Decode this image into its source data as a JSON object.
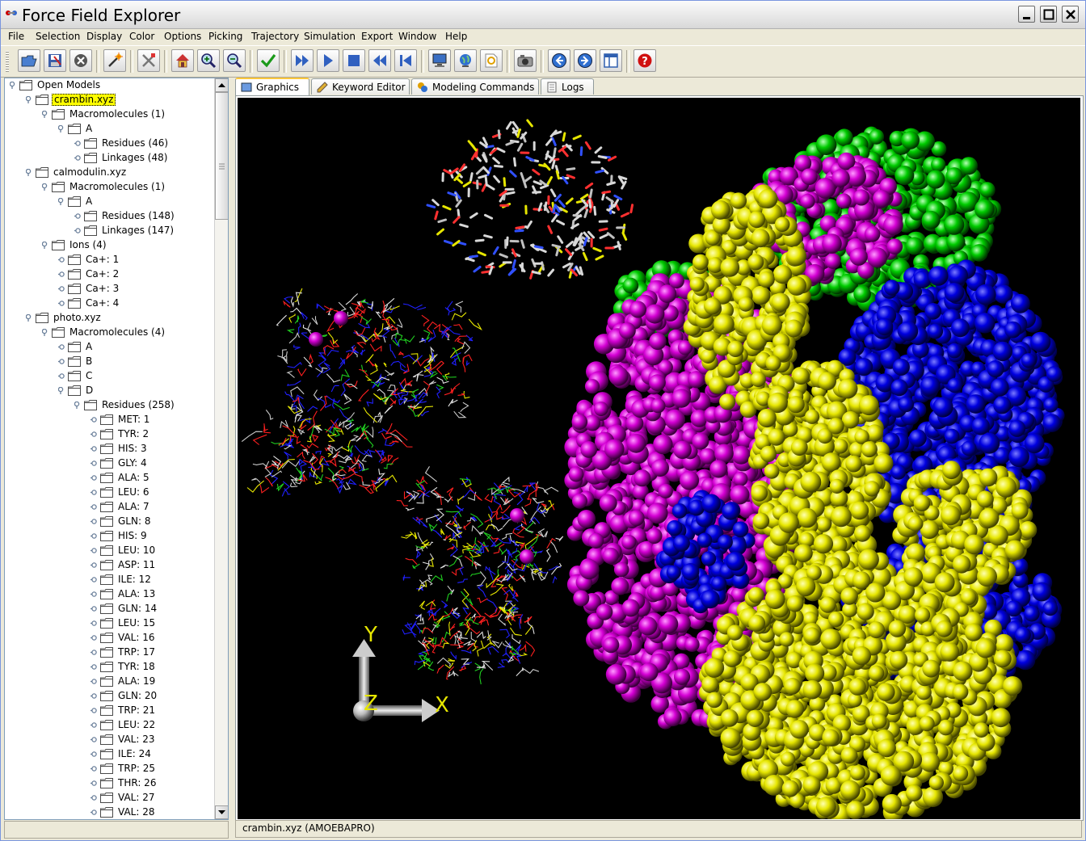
{
  "window": {
    "title": "Force Field Explorer"
  },
  "menu": [
    "File",
    "Selection",
    "Display",
    "Color",
    "Options",
    "Picking",
    "Trajectory",
    "Simulation",
    "Export",
    "Window",
    "Help"
  ],
  "toolbar_icons": [
    "open-icon",
    "save-icon",
    "close-icon",
    "wand-icon",
    "tools-icon",
    "home-icon",
    "zoom-in-icon",
    "zoom-out-icon",
    "check-icon",
    "fast-forward-icon",
    "play-icon",
    "stop-icon",
    "rewind-icon",
    "skip-back-icon",
    "monitor-icon",
    "globe-icon",
    "find-icon",
    "camera-icon",
    "back-icon",
    "forward-icon",
    "window-icon",
    "help-icon"
  ],
  "tree": [
    {
      "label": "Open Models",
      "level": 0,
      "expanded": true
    },
    {
      "label": "crambin.xyz",
      "level": 1,
      "expanded": true,
      "selected": true
    },
    {
      "label": "Macromolecules (1)",
      "level": 2,
      "expanded": true
    },
    {
      "label": "A",
      "level": 3,
      "expanded": true
    },
    {
      "label": "Residues (46)",
      "level": 4,
      "expanded": false
    },
    {
      "label": "Linkages (48)",
      "level": 4,
      "expanded": false
    },
    {
      "label": "calmodulin.xyz",
      "level": 1,
      "expanded": true
    },
    {
      "label": "Macromolecules (1)",
      "level": 2,
      "expanded": true
    },
    {
      "label": "A",
      "level": 3,
      "expanded": true
    },
    {
      "label": "Residues (148)",
      "level": 4,
      "expanded": false
    },
    {
      "label": "Linkages (147)",
      "level": 4,
      "expanded": false
    },
    {
      "label": "Ions (4)",
      "level": 2,
      "expanded": true
    },
    {
      "label": "Ca+: 1",
      "level": 3,
      "expanded": false
    },
    {
      "label": "Ca+: 2",
      "level": 3,
      "expanded": false
    },
    {
      "label": "Ca+: 3",
      "level": 3,
      "expanded": false
    },
    {
      "label": "Ca+: 4",
      "level": 3,
      "expanded": false
    },
    {
      "label": "photo.xyz",
      "level": 1,
      "expanded": true
    },
    {
      "label": "Macromolecules (4)",
      "level": 2,
      "expanded": true
    },
    {
      "label": "A",
      "level": 3,
      "expanded": false
    },
    {
      "label": "B",
      "level": 3,
      "expanded": false
    },
    {
      "label": "C",
      "level": 3,
      "expanded": false
    },
    {
      "label": "D",
      "level": 3,
      "expanded": true
    },
    {
      "label": "Residues (258)",
      "level": 4,
      "expanded": true
    },
    {
      "label": "MET: 1",
      "level": 5,
      "expanded": false
    },
    {
      "label": "TYR: 2",
      "level": 5,
      "expanded": false
    },
    {
      "label": "HIS: 3",
      "level": 5,
      "expanded": false
    },
    {
      "label": "GLY: 4",
      "level": 5,
      "expanded": false
    },
    {
      "label": "ALA: 5",
      "level": 5,
      "expanded": false
    },
    {
      "label": "LEU: 6",
      "level": 5,
      "expanded": false
    },
    {
      "label": "ALA: 7",
      "level": 5,
      "expanded": false
    },
    {
      "label": "GLN: 8",
      "level": 5,
      "expanded": false
    },
    {
      "label": "HIS: 9",
      "level": 5,
      "expanded": false
    },
    {
      "label": "LEU: 10",
      "level": 5,
      "expanded": false
    },
    {
      "label": "ASP: 11",
      "level": 5,
      "expanded": false
    },
    {
      "label": "ILE: 12",
      "level": 5,
      "expanded": false
    },
    {
      "label": "ALA: 13",
      "level": 5,
      "expanded": false
    },
    {
      "label": "GLN: 14",
      "level": 5,
      "expanded": false
    },
    {
      "label": "LEU: 15",
      "level": 5,
      "expanded": false
    },
    {
      "label": "VAL: 16",
      "level": 5,
      "expanded": false
    },
    {
      "label": "TRP: 17",
      "level": 5,
      "expanded": false
    },
    {
      "label": "TYR: 18",
      "level": 5,
      "expanded": false
    },
    {
      "label": "ALA: 19",
      "level": 5,
      "expanded": false
    },
    {
      "label": "GLN: 20",
      "level": 5,
      "expanded": false
    },
    {
      "label": "TRP: 21",
      "level": 5,
      "expanded": false
    },
    {
      "label": "LEU: 22",
      "level": 5,
      "expanded": false
    },
    {
      "label": "VAL: 23",
      "level": 5,
      "expanded": false
    },
    {
      "label": "ILE: 24",
      "level": 5,
      "expanded": false
    },
    {
      "label": "TRP: 25",
      "level": 5,
      "expanded": false
    },
    {
      "label": "THR: 26",
      "level": 5,
      "expanded": false
    },
    {
      "label": "VAL: 27",
      "level": 5,
      "expanded": false
    },
    {
      "label": "VAL: 28",
      "level": 5,
      "expanded": false
    }
  ],
  "tabs": [
    {
      "label": "Graphics",
      "active": true,
      "icon": "graphics-icon"
    },
    {
      "label": "Keyword Editor",
      "active": false,
      "icon": "keyword-icon"
    },
    {
      "label": "Modeling Commands",
      "active": false,
      "icon": "modeling-icon"
    },
    {
      "label": "Logs",
      "active": false,
      "icon": "logs-icon"
    }
  ],
  "axes": {
    "x": "X",
    "y": "Y",
    "z": "Z"
  },
  "colors": {
    "magenta": "#d400d4",
    "yellow": "#e6e600",
    "blue": "#0000e0",
    "green": "#00cc00",
    "selection": "#ffff00"
  },
  "status": {
    "text": "crambin.xyz (AMOEBAPRO)"
  }
}
